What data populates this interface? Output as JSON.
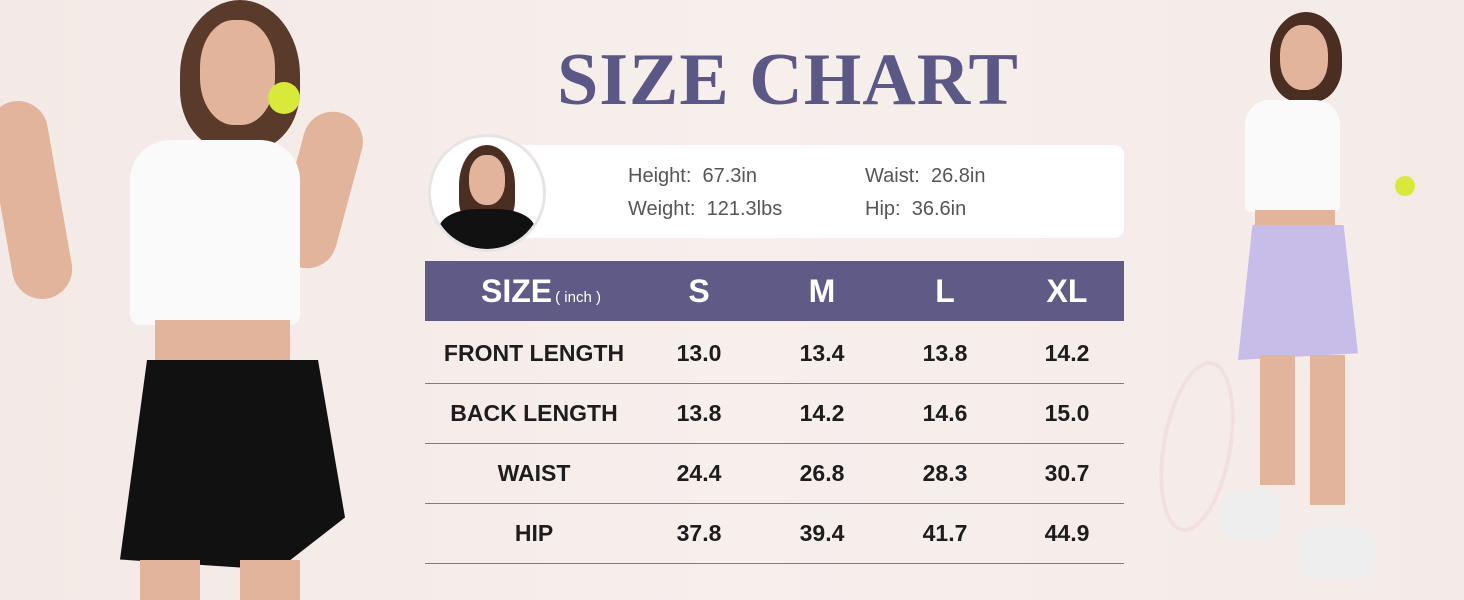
{
  "title": "SIZE CHART",
  "model": {
    "height_label": "Height:",
    "height": "67.3in",
    "weight_label": "Weight:",
    "weight": "121.3lbs",
    "waist_label": "Waist:",
    "waist": "26.8in",
    "hip_label": "Hip:",
    "hip": "36.6in"
  },
  "table": {
    "header": {
      "size": "SIZE",
      "unit": "( inch )",
      "columns": [
        "S",
        "M",
        "L",
        "XL"
      ]
    },
    "rows": [
      {
        "label": "FRONT LENGTH",
        "values": [
          "13.0",
          "13.4",
          "13.8",
          "14.2"
        ]
      },
      {
        "label": "BACK LENGTH",
        "values": [
          "13.8",
          "14.2",
          "14.6",
          "15.0"
        ]
      },
      {
        "label": "WAIST",
        "values": [
          "24.4",
          "26.8",
          "28.3",
          "30.7"
        ]
      },
      {
        "label": "HIP",
        "values": [
          "37.8",
          "39.4",
          "41.7",
          "44.9"
        ]
      }
    ]
  },
  "colors": {
    "accent": "#605a87",
    "title": "#5b5886",
    "skirt_left": "#111111",
    "skirt_right": "#c8bde8"
  }
}
